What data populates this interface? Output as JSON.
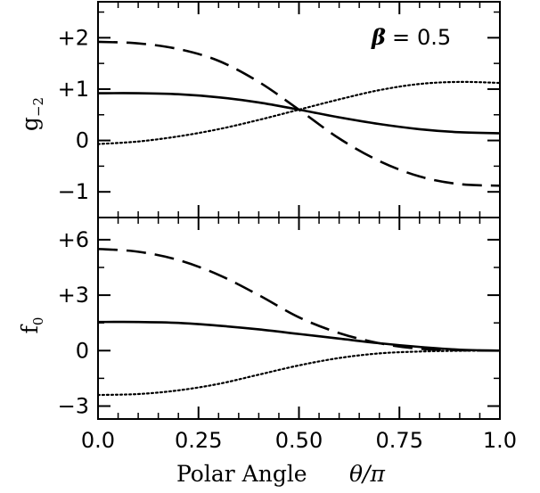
{
  "chart_data": [
    {
      "type": "line",
      "panel": "top",
      "ylabel": "g",
      "ylabel_sub": "−2",
      "annotation": {
        "symbol": "β",
        "eq": "=",
        "value": "0.5"
      },
      "xlim": [
        0,
        1
      ],
      "ylim": [
        -1.5,
        2.7
      ],
      "yticks": [
        -1,
        0,
        1,
        2
      ],
      "ytick_labels": [
        "−1",
        "0",
        "+1",
        "+2"
      ],
      "series": [
        {
          "style": "solid",
          "x": [
            0,
            0.1,
            0.2,
            0.3,
            0.4,
            0.5,
            0.6,
            0.7,
            0.8,
            0.9,
            1.0
          ],
          "y": [
            0.92,
            0.92,
            0.9,
            0.84,
            0.74,
            0.6,
            0.45,
            0.32,
            0.22,
            0.16,
            0.14
          ]
        },
        {
          "style": "dashed",
          "x": [
            0,
            0.1,
            0.2,
            0.3,
            0.4,
            0.5,
            0.6,
            0.7,
            0.8,
            0.9,
            1.0
          ],
          "y": [
            1.92,
            1.89,
            1.78,
            1.55,
            1.14,
            0.6,
            0.04,
            -0.4,
            -0.7,
            -0.85,
            -0.88
          ]
        },
        {
          "style": "dotted",
          "x": [
            0,
            0.1,
            0.2,
            0.3,
            0.4,
            0.5,
            0.6,
            0.7,
            0.8,
            0.9,
            1.0
          ],
          "y": [
            -0.07,
            -0.02,
            0.08,
            0.22,
            0.4,
            0.6,
            0.8,
            0.98,
            1.1,
            1.14,
            1.12
          ]
        }
      ]
    },
    {
      "type": "line",
      "panel": "bottom",
      "xlabel": "Polar Angle",
      "xlabel_symbol": "θ/π",
      "ylabel": "f",
      "ylabel_sub": "0",
      "xlim": [
        0,
        1
      ],
      "ylim": [
        -3.7,
        7.2
      ],
      "xticks": [
        0,
        0.25,
        0.5,
        0.75,
        1.0
      ],
      "xtick_labels": [
        "0.0",
        "0.25",
        "0.50",
        "0.75",
        "1.0"
      ],
      "yticks": [
        -3,
        0,
        3,
        6
      ],
      "ytick_labels": [
        "−3",
        "0",
        "+3",
        "+6"
      ],
      "series": [
        {
          "style": "solid",
          "x": [
            0,
            0.1,
            0.2,
            0.3,
            0.4,
            0.5,
            0.6,
            0.7,
            0.8,
            0.9,
            1.0
          ],
          "y": [
            1.55,
            1.55,
            1.5,
            1.35,
            1.15,
            0.9,
            0.65,
            0.4,
            0.2,
            0.05,
            0.0
          ]
        },
        {
          "style": "dashed",
          "x": [
            0,
            0.1,
            0.2,
            0.3,
            0.4,
            0.5,
            0.6,
            0.7,
            0.8,
            0.9,
            1.0
          ],
          "y": [
            5.5,
            5.35,
            4.9,
            4.1,
            3.0,
            1.8,
            0.95,
            0.4,
            0.1,
            0.02,
            0.0
          ]
        },
        {
          "style": "dotted",
          "x": [
            0,
            0.1,
            0.2,
            0.3,
            0.4,
            0.5,
            0.6,
            0.7,
            0.8,
            0.9,
            1.0
          ],
          "y": [
            -2.4,
            -2.35,
            -2.15,
            -1.8,
            -1.3,
            -0.8,
            -0.4,
            -0.15,
            -0.05,
            -0.01,
            0.0
          ]
        }
      ]
    }
  ]
}
